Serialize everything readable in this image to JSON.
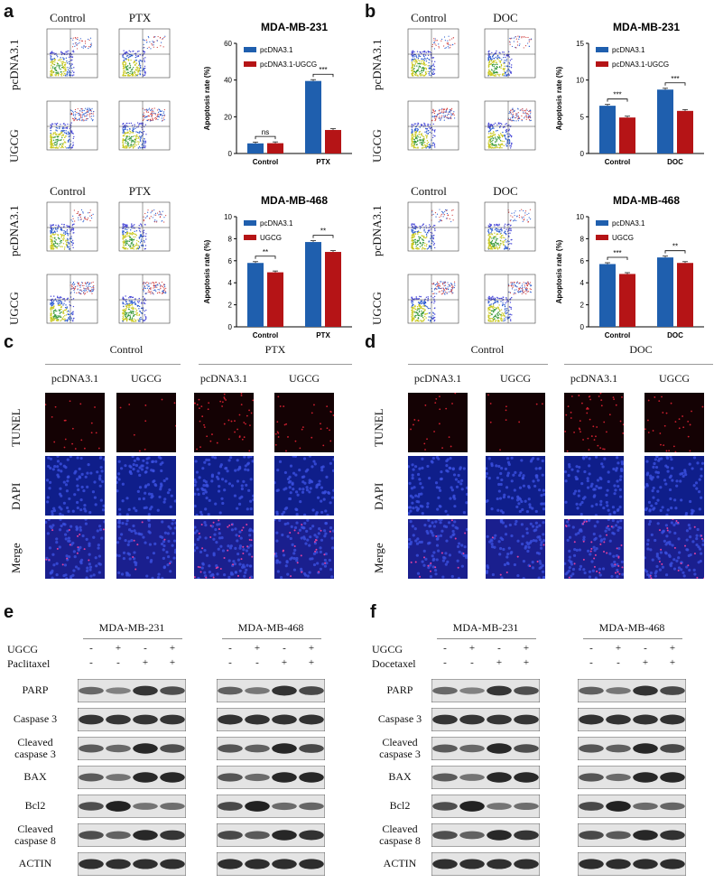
{
  "panels": {
    "a": "a",
    "b": "b",
    "c": "c",
    "d": "d",
    "e": "e",
    "f": "f"
  },
  "flow": {
    "a_top_cols": [
      "Control",
      "PTX"
    ],
    "a_bot_cols": [
      "Control",
      "PTX"
    ],
    "b_top_cols": [
      "Control",
      "DOC"
    ],
    "b_bot_cols": [
      "Control",
      "DOC"
    ],
    "rows": [
      "pcDNA3.1",
      "UGCG"
    ]
  },
  "colors": {
    "blue": "#1f5fae",
    "red": "#b51416",
    "tunel_bg": "#140204",
    "dapi_bg": "#0f1e8a"
  },
  "chart_data": [
    {
      "type": "bar",
      "title": "MDA-MB-231",
      "ylabel": "Apoptosis rate (%)",
      "categories": [
        "Control",
        "PTX"
      ],
      "ylim": [
        0,
        60
      ],
      "yticks": [
        0,
        20,
        40,
        60
      ],
      "series": [
        {
          "name": "pcDNA3.1",
          "values": [
            5.5,
            39.5
          ]
        },
        {
          "name": "pcDNA3.1-UGCG",
          "values": [
            5.6,
            12.8
          ]
        }
      ],
      "significance": [
        "ns",
        "***"
      ]
    },
    {
      "type": "bar",
      "title": "MDA-MB-231",
      "ylabel": "Apoptosis rate (%)",
      "categories": [
        "Control",
        "DOC"
      ],
      "ylim": [
        0,
        15
      ],
      "yticks": [
        0,
        5,
        10,
        15
      ],
      "series": [
        {
          "name": "pcDNA3.1",
          "values": [
            6.5,
            8.7
          ]
        },
        {
          "name": "pcDNA3.1-UGCG",
          "values": [
            4.9,
            5.8
          ]
        }
      ],
      "significance": [
        "***",
        "***"
      ]
    },
    {
      "type": "bar",
      "title": "MDA-MB-468",
      "ylabel": "Apoptosis rate (%)",
      "categories": [
        "Control",
        "PTX"
      ],
      "ylim": [
        0,
        10
      ],
      "yticks": [
        0,
        2,
        4,
        6,
        8,
        10
      ],
      "series": [
        {
          "name": "pcDNA3.1",
          "values": [
            5.8,
            7.7
          ]
        },
        {
          "name": "UGCG",
          "values": [
            4.95,
            6.8
          ]
        }
      ],
      "significance": [
        "**",
        "**"
      ]
    },
    {
      "type": "bar",
      "title": "MDA-MB-468",
      "ylabel": "Apoptosis rate (%)",
      "categories": [
        "Control",
        "DOC"
      ],
      "ylim": [
        0,
        10
      ],
      "yticks": [
        0,
        2,
        4,
        6,
        8,
        10
      ],
      "series": [
        {
          "name": "pcDNA3.1",
          "values": [
            5.7,
            6.3
          ]
        },
        {
          "name": "UGCG",
          "values": [
            4.8,
            5.8
          ]
        }
      ],
      "significance": [
        "***",
        "**"
      ]
    }
  ],
  "micro": {
    "c_groups": [
      "Control",
      "PTX"
    ],
    "d_groups": [
      "Control",
      "DOC"
    ],
    "cols": [
      "pcDNA3.1",
      "UGCG",
      "pcDNA3.1",
      "UGCG"
    ],
    "rows": [
      "TUNEL",
      "DAPI",
      "Merge"
    ]
  },
  "western": {
    "e_cells": [
      "MDA-MB-231",
      "MDA-MB-468"
    ],
    "f_cells": [
      "MDA-MB-231",
      "MDA-MB-468"
    ],
    "ugcg_label": "UGCG",
    "e_drug": "Paclitaxel",
    "f_drug": "Docetaxel",
    "ugcg_signs": [
      "-",
      "+",
      "-",
      "+"
    ],
    "drug_signs": [
      "-",
      "-",
      "+",
      "+"
    ],
    "rows": [
      "PARP",
      "Caspase 3",
      "Cleaved caspase 3",
      "BAX",
      "Bcl2",
      "Cleaved caspase 8",
      "ACTIN"
    ]
  }
}
